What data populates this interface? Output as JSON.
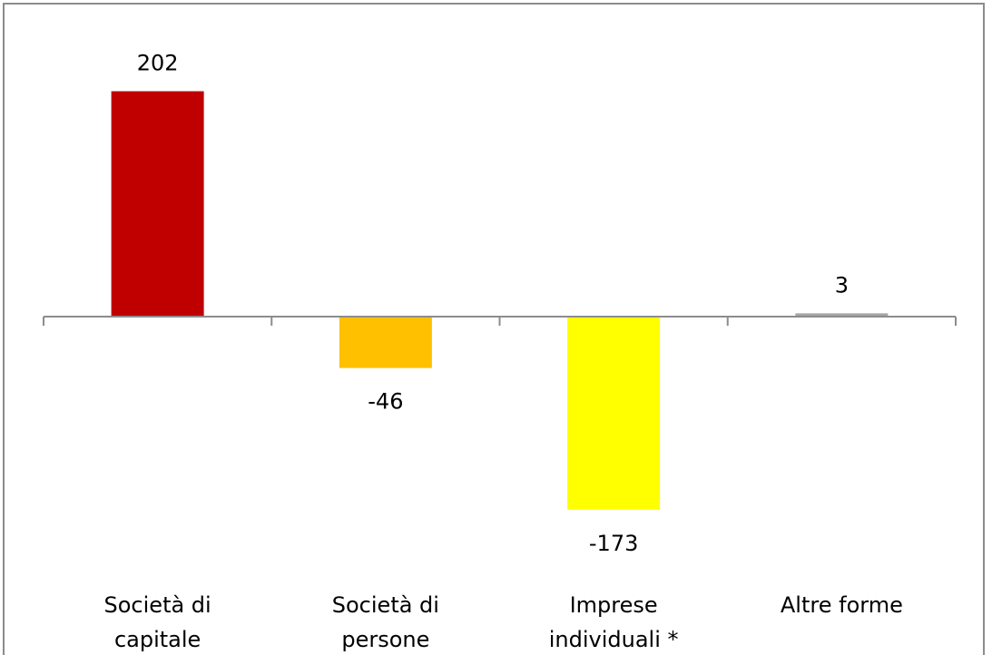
{
  "chart_data": {
    "type": "bar",
    "categories": [
      "Società di\ncapitale",
      "Società di\npersone",
      "Imprese\nindividuali *",
      "Altre forme"
    ],
    "values": [
      202,
      -46,
      -173,
      3
    ],
    "colors": [
      "#c00000",
      "#ffc000",
      "#ffff00",
      "#a6a6a6"
    ],
    "ylim": [
      -230,
      250
    ],
    "data_labels": true
  }
}
